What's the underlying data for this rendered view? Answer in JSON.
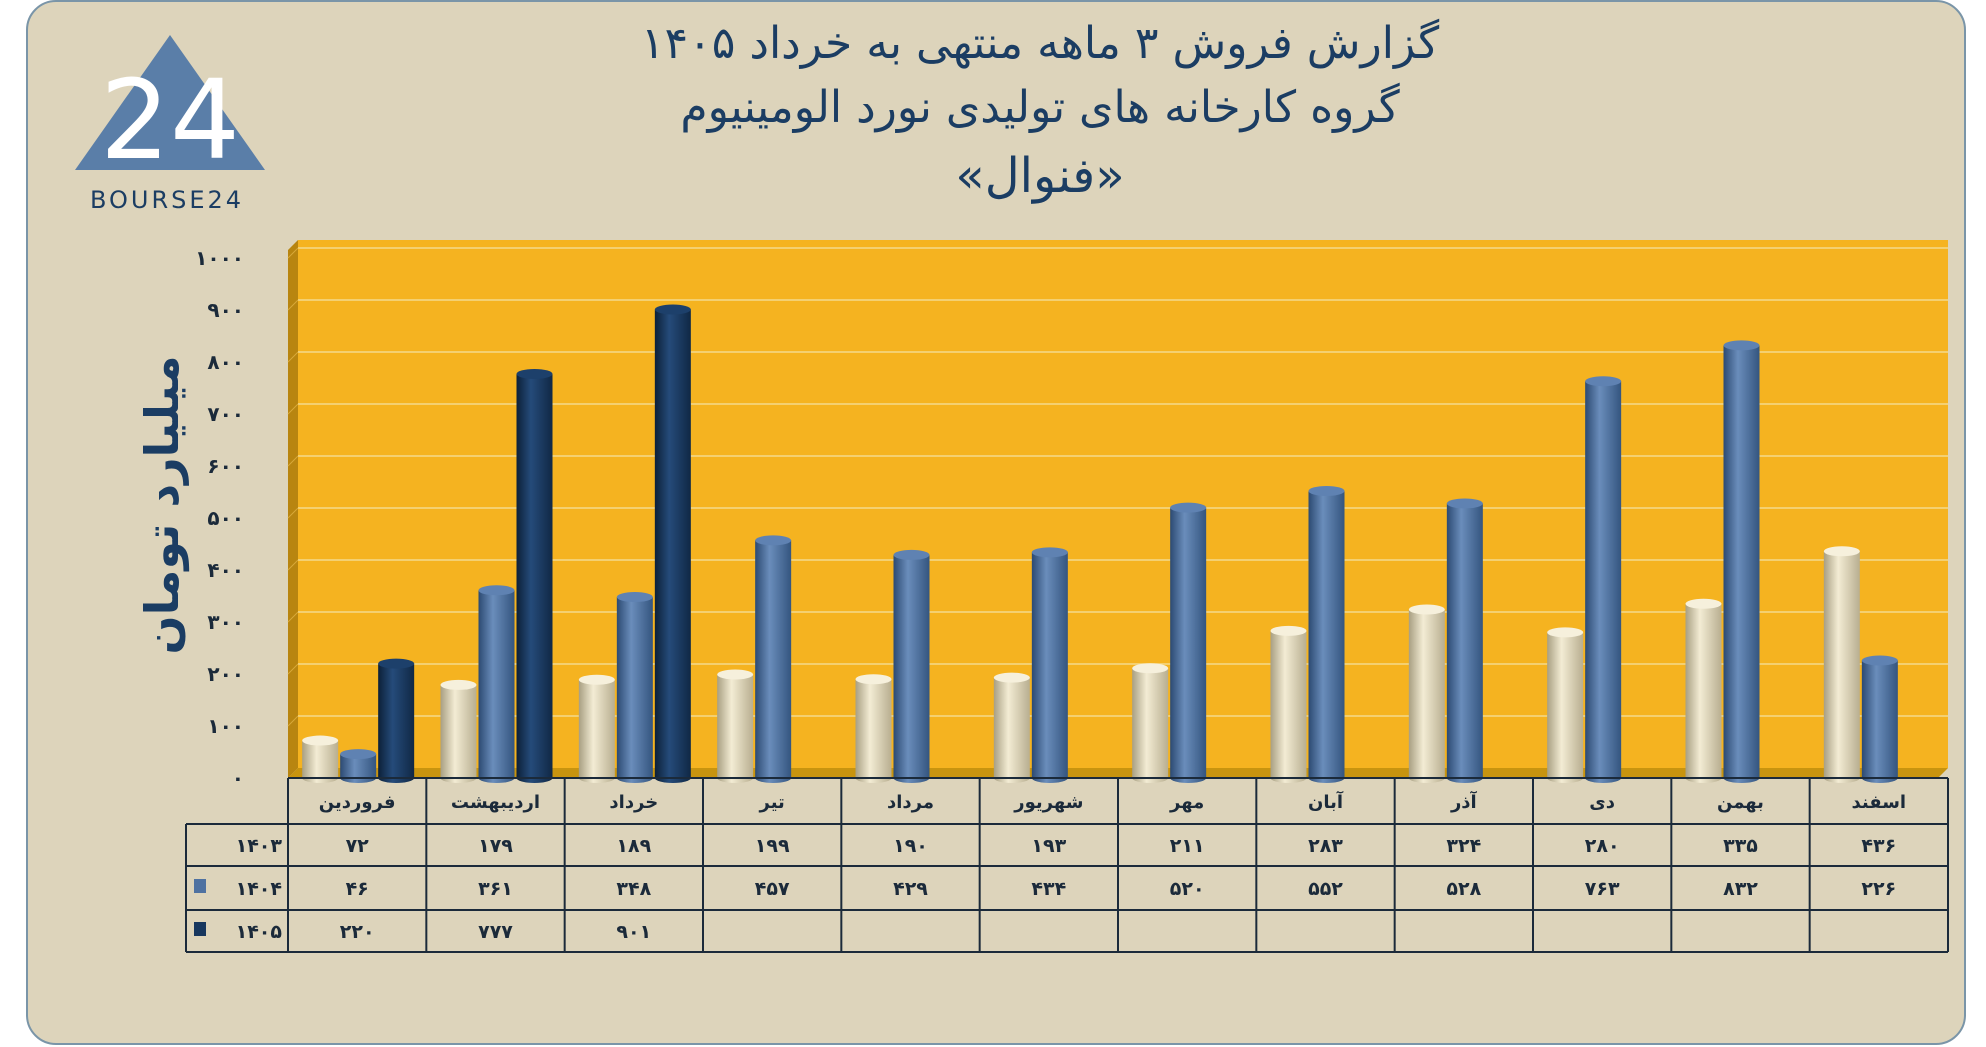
{
  "title": {
    "line1": "گزارش  فروش ۳ ماهه منتهی به خرداد ۱۴۰۵",
    "line2": "گروه کارخانه های تولیدی نورد الومینیوم",
    "line3": "«فنوال»"
  },
  "logo": {
    "mark": "24",
    "text": "BOURSE24"
  },
  "colors": {
    "background": "#ddd4bb",
    "plot": "#f5b320",
    "series_1403": "#e8dfc0",
    "series_1404": "#4f72a1",
    "series_1405": "#17375e",
    "title": "#1b3d63"
  },
  "chart_data": {
    "type": "bar",
    "title": "گزارش  فروش ۳ ماهه منتهی به خرداد ۱۴۰۵",
    "ylabel": "میلیارد تومان",
    "xlabel": "",
    "ylim": [
      0,
      1000
    ],
    "yticks": [
      0,
      100,
      200,
      300,
      400,
      500,
      600,
      700,
      800,
      900,
      1000
    ],
    "ytick_labels": [
      "۰",
      "۱۰۰",
      "۲۰۰",
      "۳۰۰",
      "۴۰۰",
      "۵۰۰",
      "۶۰۰",
      "۷۰۰",
      "۸۰۰",
      "۹۰۰",
      "۱۰۰۰"
    ],
    "grid": true,
    "legend": "data table rows",
    "categories": [
      "فروردین",
      "اردیبهشت",
      "خرداد",
      "تیر",
      "مرداد",
      "شهریور",
      "مهر",
      "آبان",
      "آذر",
      "دی",
      "بهمن",
      "اسفند"
    ],
    "series": [
      {
        "name": "۱۴۰۳",
        "color": "#e8dfc0",
        "values": [
          72,
          179,
          189,
          199,
          190,
          193,
          211,
          283,
          324,
          280,
          335,
          436
        ],
        "labels": [
          "۷۲",
          "۱۷۹",
          "۱۸۹",
          "۱۹۹",
          "۱۹۰",
          "۱۹۳",
          "۲۱۱",
          "۲۸۳",
          "۳۲۴",
          "۲۸۰",
          "۳۳۵",
          "۴۳۶"
        ]
      },
      {
        "name": "۱۴۰۴",
        "color": "#4f72a1",
        "values": [
          46,
          361,
          348,
          457,
          429,
          434,
          520,
          552,
          528,
          763,
          832,
          226
        ],
        "labels": [
          "۴۶",
          "۳۶۱",
          "۳۴۸",
          "۴۵۷",
          "۴۲۹",
          "۴۳۴",
          "۵۲۰",
          "۵۵۲",
          "۵۲۸",
          "۷۶۳",
          "۸۳۲",
          "۲۲۶"
        ]
      },
      {
        "name": "۱۴۰۵",
        "color": "#17375e",
        "values": [
          220,
          777,
          901,
          null,
          null,
          null,
          null,
          null,
          null,
          null,
          null,
          null
        ],
        "labels": [
          "۲۲۰",
          "۷۷۷",
          "۹۰۱",
          "",
          "",
          "",
          "",
          "",
          "",
          "",
          "",
          ""
        ]
      }
    ]
  }
}
